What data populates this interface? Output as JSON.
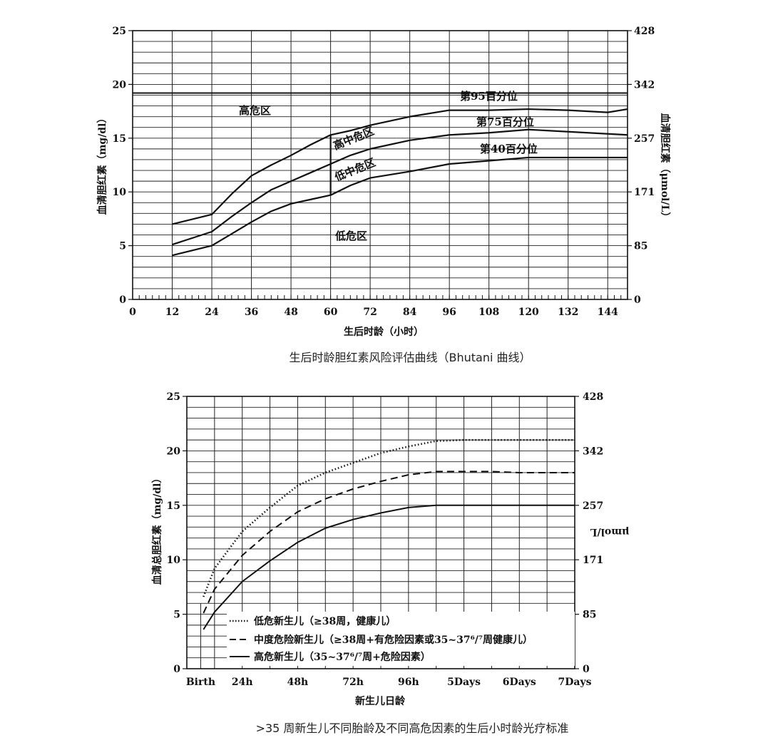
{
  "chart_data": [
    {
      "type": "line",
      "title": "",
      "caption": "生后时龄胆红素风险评估曲线（Bhutani 曲线）",
      "xlabel": "生后时龄（小时）",
      "ylabel": "血清胆红素（mg/dl）",
      "ylabel_right": "血清胆红素（μmol/L）",
      "xlim": [
        0,
        150
      ],
      "ylim": [
        0,
        25
      ],
      "x_ticks": [
        "0",
        "12",
        "24",
        "36",
        "48",
        "60",
        "72",
        "84",
        "96",
        "108",
        "120",
        "132",
        "144"
      ],
      "y_ticks": [
        "0",
        "5",
        "10",
        "15",
        "20",
        "25"
      ],
      "y_ticks_right": [
        "0",
        "85",
        "171",
        "257",
        "342",
        "428"
      ],
      "grid": true,
      "zones": [
        "高危区",
        "高中危区",
        "低中危区",
        "低危区"
      ],
      "series": [
        {
          "name": "第95百分位",
          "style": "solid",
          "x": [
            12,
            24,
            30,
            36,
            42,
            48,
            54,
            60,
            66,
            72,
            84,
            96,
            108,
            120,
            132,
            144,
            150
          ],
          "y": [
            7.0,
            7.9,
            9.8,
            11.5,
            12.5,
            13.4,
            14.4,
            15.3,
            15.7,
            16.2,
            17.0,
            17.6,
            17.6,
            17.7,
            17.6,
            17.4,
            17.7
          ]
        },
        {
          "name": "第75百分位",
          "style": "solid",
          "x": [
            12,
            24,
            30,
            36,
            42,
            48,
            54,
            60,
            66,
            72,
            84,
            96,
            108,
            120,
            132,
            144,
            150
          ],
          "y": [
            5.1,
            6.3,
            7.7,
            9.0,
            10.2,
            11.0,
            11.8,
            12.6,
            13.4,
            14.0,
            14.8,
            15.3,
            15.5,
            15.8,
            15.6,
            15.4,
            15.3
          ]
        },
        {
          "name": "第40百分位",
          "style": "solid",
          "x": [
            12,
            24,
            30,
            36,
            42,
            48,
            54,
            60,
            66,
            72,
            84,
            96,
            108,
            120,
            132,
            144,
            150
          ],
          "y": [
            4.1,
            5.0,
            6.1,
            7.2,
            8.2,
            8.9,
            9.3,
            9.7,
            10.6,
            11.3,
            11.9,
            12.6,
            12.9,
            13.2,
            13.2,
            13.2,
            13.2
          ]
        }
      ],
      "threshold_line": {
        "y": 19.2
      }
    },
    {
      "type": "line",
      "title": "",
      "caption": ">35 周新生儿不同胎龄及不同高危因素的生后小时龄光疗标准",
      "xlabel": "新生儿日龄",
      "ylabel": "血清总胆红素（mg/dl）",
      "ylabel_right": "μmol/L",
      "xlim": [
        0,
        7
      ],
      "ylim": [
        0,
        25
      ],
      "x_ticks": [
        "Birth",
        "24h",
        "48h",
        "72h",
        "96h",
        "5Days",
        "6Days",
        "7Days"
      ],
      "y_ticks": [
        "0",
        "5",
        "10",
        "15",
        "20",
        "25"
      ],
      "y_ticks_right": [
        "0",
        "85",
        "171",
        "257",
        "342",
        "428"
      ],
      "grid": true,
      "legend_position": "bottom-left",
      "series": [
        {
          "name": "低危新生儿（≥38周，健康儿）",
          "style": "dotted",
          "x": [
            0.3,
            0.5,
            1.0,
            1.5,
            2.0,
            2.5,
            3.0,
            3.5,
            4.0,
            4.5,
            5.0,
            5.5,
            6.0,
            6.5,
            7.0
          ],
          "y": [
            6.6,
            9.2,
            12.6,
            14.8,
            16.8,
            18.0,
            18.9,
            19.8,
            20.4,
            20.9,
            21.0,
            21.0,
            21.0,
            21.0,
            21.0
          ]
        },
        {
          "name": "中度危险新生儿（≥38周+有危险因素或35~37⁶/⁷周健康儿）",
          "style": "dashed",
          "x": [
            0.3,
            0.5,
            1.0,
            1.5,
            2.0,
            2.5,
            3.0,
            3.5,
            4.0,
            4.5,
            5.0,
            5.5,
            6.0,
            6.5,
            7.0
          ],
          "y": [
            5.1,
            7.3,
            10.4,
            12.6,
            14.4,
            15.6,
            16.5,
            17.2,
            17.8,
            18.1,
            18.1,
            18.1,
            18.0,
            18.0,
            18.0
          ]
        },
        {
          "name": "高危新生儿（35~37⁶/⁷周+危险因素）",
          "style": "solid",
          "x": [
            0.3,
            0.5,
            1.0,
            1.5,
            2.0,
            2.5,
            3.0,
            3.5,
            4.0,
            4.5,
            5.0,
            5.5,
            6.0,
            6.5,
            7.0
          ],
          "y": [
            3.6,
            5.2,
            8.0,
            9.9,
            11.6,
            12.9,
            13.7,
            14.3,
            14.8,
            15.0,
            15.0,
            15.0,
            15.0,
            15.0,
            15.0
          ]
        }
      ]
    }
  ]
}
